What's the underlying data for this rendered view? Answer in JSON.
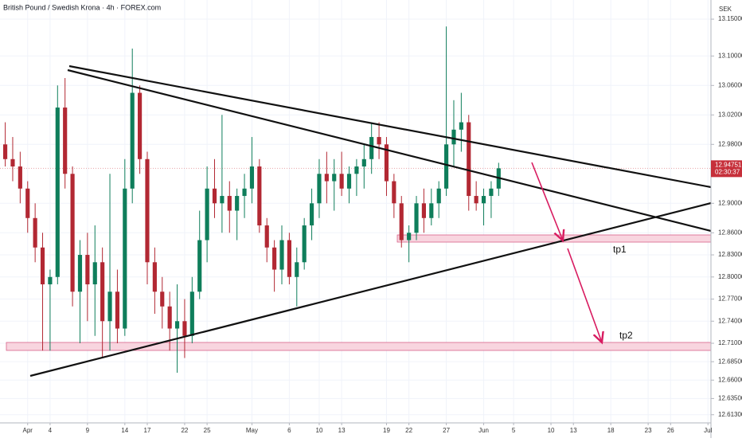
{
  "chart_data": {
    "type": "candlestick",
    "title": "British Pound / Swedish Krona · 4h · FOREX.com",
    "currency": "SEK",
    "last_price": 12.94751,
    "countdown": "02:30:37",
    "annotations": [
      "tp1",
      "tp2"
    ],
    "up_color": "#0f7e5b",
    "down_color": "#b22833",
    "xlim": [
      -2.7,
      92.4
    ],
    "ylim": [
      12.603,
      13.176
    ],
    "xticks": [
      {
        "value": 1,
        "label": "Apr"
      },
      4,
      9,
      14,
      17,
      22,
      25,
      {
        "value": 31,
        "label": "May"
      },
      {
        "value": 36,
        "label": "6"
      },
      {
        "value": 40,
        "label": "10"
      },
      {
        "value": 43,
        "label": "13"
      },
      {
        "value": 49,
        "label": "19"
      },
      {
        "value": 52,
        "label": "22"
      },
      {
        "value": 57,
        "label": "27"
      },
      {
        "value": 62,
        "label": "Jun"
      },
      {
        "value": 66,
        "label": "5"
      },
      {
        "value": 71,
        "label": "10"
      },
      {
        "value": 74,
        "label": "13"
      },
      {
        "value": 79,
        "label": "18"
      },
      {
        "value": 84,
        "label": "23"
      },
      {
        "value": 87,
        "label": "26"
      },
      {
        "value": 92,
        "label": "Jul"
      }
    ],
    "yticks": [
      {
        "value": 13.15,
        "label": "13.15000"
      },
      {
        "value": 13.1,
        "label": "13.10000"
      },
      {
        "value": 13.06,
        "label": "13.06000"
      },
      {
        "value": 13.02,
        "label": "13.02000"
      },
      {
        "value": 12.98,
        "label": "12.98000"
      },
      {
        "value": 12.9,
        "label": "12.90000"
      },
      {
        "value": 12.86,
        "label": "12.86000"
      },
      {
        "value": 12.83,
        "label": "12.83000"
      },
      {
        "value": 12.8,
        "label": "12.80000"
      },
      {
        "value": 12.77,
        "label": "12.77000"
      },
      {
        "value": 12.74,
        "label": "12.74000"
      },
      {
        "value": 12.71,
        "label": "12.71000"
      },
      {
        "value": 12.685,
        "label": "12.68500"
      },
      {
        "value": 12.66,
        "label": "12.66000"
      },
      {
        "value": 12.635,
        "label": "12.63500"
      },
      {
        "value": 12.613,
        "label": "12.61300"
      }
    ],
    "x": [
      -2,
      -1,
      0,
      1,
      2,
      3,
      4,
      5,
      6,
      7,
      8,
      9,
      10,
      11,
      12,
      13,
      14,
      15,
      16,
      17,
      18,
      19,
      20,
      21,
      22,
      23,
      24,
      25,
      26,
      27,
      28,
      29,
      30,
      31,
      32,
      33,
      34,
      35,
      36,
      37,
      38,
      39,
      40,
      41,
      42,
      43,
      44,
      45,
      46,
      47,
      48,
      49,
      50,
      51,
      52,
      53,
      54,
      55,
      56,
      57,
      58,
      59,
      60,
      61,
      62,
      63,
      64
    ],
    "open": [
      12.98,
      12.96,
      12.95,
      12.92,
      12.88,
      12.84,
      12.79,
      12.8,
      13.03,
      12.94,
      12.78,
      12.83,
      12.79,
      12.82,
      12.74,
      12.78,
      12.73,
      12.92,
      13.05,
      12.96,
      12.82,
      12.78,
      12.76,
      12.73,
      12.74,
      12.72,
      12.78,
      12.85,
      12.92,
      12.9,
      12.91,
      12.89,
      12.91,
      12.92,
      12.95,
      12.87,
      12.84,
      12.81,
      12.85,
      12.8,
      12.82,
      12.87,
      12.9,
      12.94,
      12.93,
      12.94,
      12.92,
      12.94,
      12.95,
      12.96,
      12.99,
      12.98,
      12.93,
      12.9,
      12.85,
      12.86,
      12.9,
      12.88,
      12.9,
      12.92,
      12.98,
      13.0,
      13.01,
      12.91,
      12.9,
      12.91,
      12.92
    ],
    "high": [
      13.01,
      12.99,
      12.97,
      12.93,
      12.9,
      12.86,
      12.81,
      13.06,
      13.07,
      12.95,
      12.85,
      12.86,
      12.87,
      12.84,
      12.94,
      12.81,
      12.96,
      13.11,
      13.06,
      12.97,
      12.84,
      12.8,
      12.78,
      12.79,
      12.77,
      12.8,
      12.89,
      12.95,
      12.96,
      13.02,
      12.93,
      12.92,
      12.94,
      12.99,
      12.96,
      12.88,
      12.85,
      12.87,
      12.86,
      12.84,
      12.88,
      12.92,
      12.96,
      12.97,
      12.96,
      12.97,
      12.95,
      12.96,
      12.98,
      13.01,
      13.01,
      12.99,
      12.94,
      12.91,
      12.87,
      12.91,
      12.92,
      12.92,
      12.93,
      13.14,
      13.04,
      13.05,
      13.02,
      12.93,
      12.92,
      12.93,
      12.955
    ],
    "low": [
      12.95,
      12.93,
      12.9,
      12.86,
      12.82,
      12.7,
      12.7,
      12.79,
      12.92,
      12.76,
      12.71,
      12.74,
      12.72,
      12.69,
      12.7,
      12.71,
      12.72,
      12.9,
      12.94,
      12.79,
      12.75,
      12.73,
      12.7,
      12.67,
      12.69,
      12.71,
      12.77,
      12.82,
      12.88,
      12.86,
      12.86,
      12.85,
      12.88,
      12.9,
      12.86,
      12.82,
      12.78,
      12.79,
      12.79,
      12.76,
      12.81,
      12.85,
      12.88,
      12.9,
      12.89,
      12.91,
      12.9,
      12.91,
      12.92,
      12.94,
      12.96,
      12.91,
      12.88,
      12.84,
      12.82,
      12.85,
      12.86,
      12.87,
      12.88,
      12.91,
      12.95,
      12.97,
      12.89,
      12.89,
      12.87,
      12.88,
      12.91
    ],
    "close": [
      12.96,
      12.95,
      12.92,
      12.88,
      12.84,
      12.79,
      12.8,
      13.03,
      12.94,
      12.78,
      12.83,
      12.79,
      12.82,
      12.74,
      12.78,
      12.73,
      12.92,
      13.05,
      12.96,
      12.82,
      12.78,
      12.76,
      12.73,
      12.74,
      12.72,
      12.78,
      12.85,
      12.92,
      12.9,
      12.91,
      12.89,
      12.91,
      12.92,
      12.95,
      12.87,
      12.84,
      12.81,
      12.85,
      12.8,
      12.82,
      12.87,
      12.9,
      12.94,
      12.93,
      12.94,
      12.92,
      12.94,
      12.95,
      12.96,
      12.99,
      12.98,
      12.93,
      12.9,
      12.85,
      12.86,
      12.9,
      12.88,
      12.9,
      12.92,
      12.98,
      13.0,
      13.01,
      12.91,
      12.9,
      12.91,
      12.92,
      12.94751
    ]
  }
}
